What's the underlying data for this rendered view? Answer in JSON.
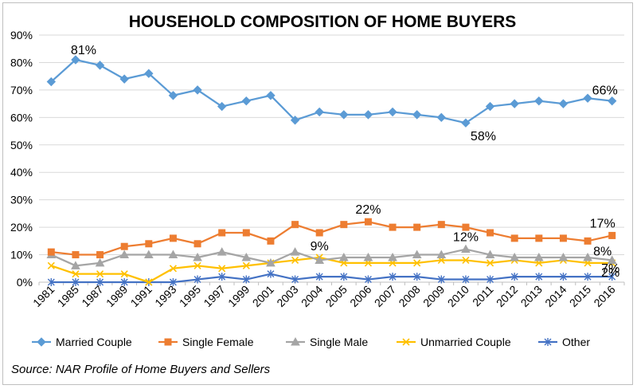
{
  "chart_data": {
    "type": "line",
    "title": "HOUSEHOLD COMPOSITION OF HOME BUYERS",
    "source": "Source: NAR Profile of Home Buyers and Sellers",
    "categories": [
      "1981",
      "1985",
      "1987",
      "1989",
      "1991",
      "1993",
      "1995",
      "1997",
      "1999",
      "2001",
      "2003",
      "2004",
      "2005",
      "2006",
      "2007",
      "2008",
      "2009",
      "2010",
      "2011",
      "2012",
      "2013",
      "2014",
      "2015",
      "2016"
    ],
    "y_ticks": [
      "0%",
      "10%",
      "20%",
      "30%",
      "40%",
      "50%",
      "60%",
      "70%",
      "80%",
      "90%"
    ],
    "ylim": [
      0,
      90
    ],
    "grid": true,
    "legend_position": "bottom",
    "series": [
      {
        "name": "Married Couple",
        "color": "#5b9bd5",
        "marker": "diamond",
        "values": [
          73,
          81,
          79,
          74,
          76,
          68,
          70,
          64,
          66,
          68,
          59,
          62,
          61,
          61,
          62,
          61,
          60,
          58,
          64,
          65,
          66,
          65,
          67,
          66
        ]
      },
      {
        "name": "Single Female",
        "color": "#ed7d31",
        "marker": "square",
        "values": [
          11,
          10,
          10,
          13,
          14,
          16,
          14,
          18,
          18,
          15,
          21,
          18,
          21,
          22,
          20,
          20,
          21,
          20,
          18,
          16,
          16,
          16,
          15,
          17
        ]
      },
      {
        "name": "Single Male",
        "color": "#a5a5a5",
        "marker": "triangle",
        "values": [
          10,
          6,
          7,
          10,
          10,
          10,
          9,
          11,
          9,
          7,
          11,
          8,
          9,
          9,
          9,
          10,
          10,
          12,
          10,
          9,
          9,
          9,
          9,
          8
        ]
      },
      {
        "name": "Unmarried Couple",
        "color": "#ffc000",
        "marker": "x",
        "values": [
          6,
          3,
          3,
          3,
          0,
          5,
          6,
          5,
          6,
          7,
          8,
          9,
          7,
          7,
          7,
          7,
          8,
          8,
          7,
          8,
          7,
          8,
          7,
          7
        ]
      },
      {
        "name": "Other",
        "color": "#4472c4",
        "marker": "star",
        "values": [
          0,
          0,
          0,
          0,
          0,
          0,
          1,
          2,
          1,
          3,
          1,
          2,
          2,
          1,
          2,
          2,
          1,
          1,
          1,
          2,
          2,
          2,
          2,
          2
        ]
      }
    ],
    "annotations": [
      {
        "series": 0,
        "index": 1,
        "text": "81%"
      },
      {
        "series": 0,
        "index": 17,
        "text": "58%"
      },
      {
        "series": 0,
        "index": 23,
        "text": "66%"
      },
      {
        "series": 1,
        "index": 13,
        "text": "22%"
      },
      {
        "series": 1,
        "index": 23,
        "text": "17%"
      },
      {
        "series": 2,
        "index": 17,
        "text": "12%"
      },
      {
        "series": 2,
        "index": 23,
        "text": "8%"
      },
      {
        "series": 3,
        "index": 11,
        "text": "9%"
      },
      {
        "series": 3,
        "index": 23,
        "text": "7%"
      },
      {
        "series": 4,
        "index": 23,
        "text": "2%"
      }
    ]
  }
}
